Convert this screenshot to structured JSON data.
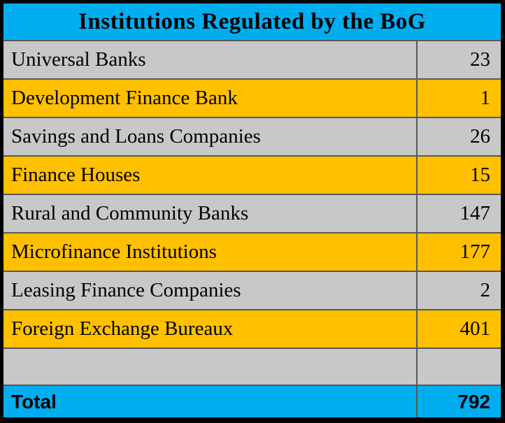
{
  "table": {
    "title": "Institutions Regulated by the BoG",
    "rows": [
      {
        "label": "Universal Banks",
        "value": "23"
      },
      {
        "label": "Development Finance Bank",
        "value": "1"
      },
      {
        "label": "Savings and Loans Companies",
        "value": "26"
      },
      {
        "label": "Finance Houses",
        "value": "15"
      },
      {
        "label": "Rural and Community Banks",
        "value": "147"
      },
      {
        "label": "Microfinance Institutions",
        "value": "177"
      },
      {
        "label": "Leasing Finance Companies",
        "value": "2"
      },
      {
        "label": "Foreign Exchange Bureaux",
        "value": "401"
      },
      {
        "label": "",
        "value": ""
      }
    ],
    "total": {
      "label": "Total",
      "value": "792"
    },
    "colors": {
      "header_bg": "#00AEEF",
      "row_gray": "#C8C8C8",
      "row_gold": "#FFC000",
      "grid_line": "#595959",
      "outer_border": "#000000",
      "text": "#000000"
    }
  },
  "chart_data": {
    "type": "table",
    "title": "Institutions Regulated by the BoG",
    "categories": [
      "Universal Banks",
      "Development Finance Bank",
      "Savings and Loans Companies",
      "Finance Houses",
      "Rural and Community Banks",
      "Microfinance Institutions",
      "Leasing Finance Companies",
      "Foreign Exchange Bureaux"
    ],
    "values": [
      23,
      1,
      26,
      15,
      147,
      177,
      2,
      401
    ],
    "total": 792,
    "legend_position": "none",
    "grid": true
  }
}
